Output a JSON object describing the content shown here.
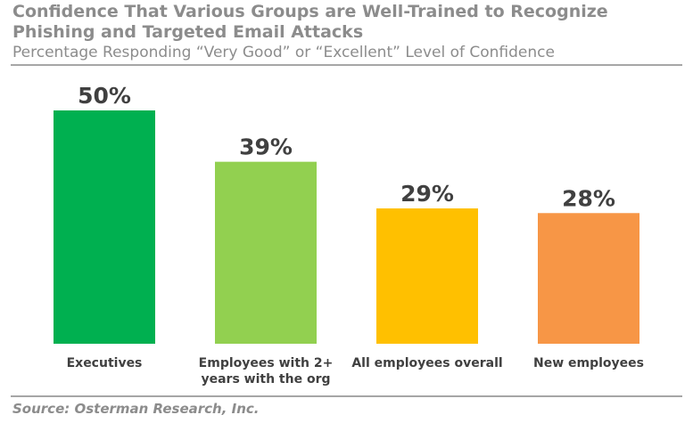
{
  "chart_data": {
    "type": "bar",
    "title": "Confidence That Various Groups are Well-Trained to Recognize Phishing and Targeted Email Attacks",
    "subtitle": "Percentage Responding “Very Good” or “Excellent” Level of Confidence",
    "categories": [
      [
        "Executives"
      ],
      [
        "Employees with 2+",
        "years with the org"
      ],
      [
        "All employees overall"
      ],
      [
        "New employees"
      ]
    ],
    "values": [
      50,
      39,
      29,
      28
    ],
    "value_labels": [
      "50%",
      "39%",
      "29%",
      "28%"
    ],
    "colors": [
      "#00b050",
      "#92d050",
      "#ffc000",
      "#f79646"
    ],
    "ylim": [
      0,
      50
    ],
    "grid": false,
    "legend": "none"
  },
  "source": "Source: Osterman Research, Inc."
}
